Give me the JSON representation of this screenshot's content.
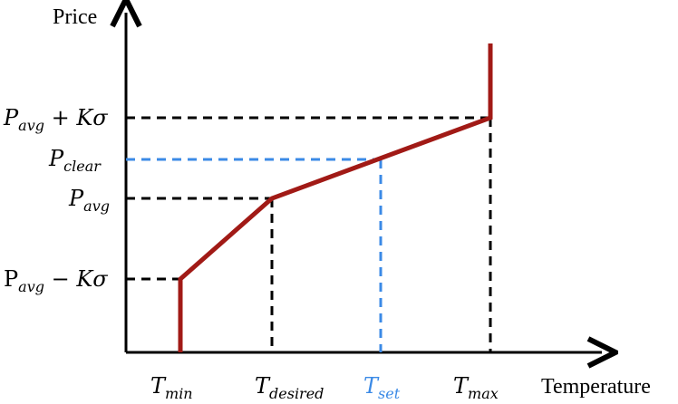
{
  "axes": {
    "y_title": "Price",
    "x_title": "Temperature"
  },
  "y_labels": {
    "upper": {
      "main": "P",
      "sub": "avg",
      "rest": " + Kσ"
    },
    "clear": {
      "main": "P",
      "sub": "clear"
    },
    "avg": {
      "main": "P",
      "sub": "avg"
    },
    "lower": {
      "main": "P",
      "sub": "avg",
      "rest": " − Kσ"
    }
  },
  "x_labels": {
    "min": {
      "main": "T",
      "sub": "min"
    },
    "desired": {
      "main": "T",
      "sub": "desired"
    },
    "set": {
      "main": "T",
      "sub": "set"
    },
    "max": {
      "main": "T",
      "sub": "max"
    }
  },
  "colors": {
    "curve": "#a11a16",
    "guide": "#000000",
    "highlight": "#3b8ae6",
    "axis": "#000000"
  }
}
